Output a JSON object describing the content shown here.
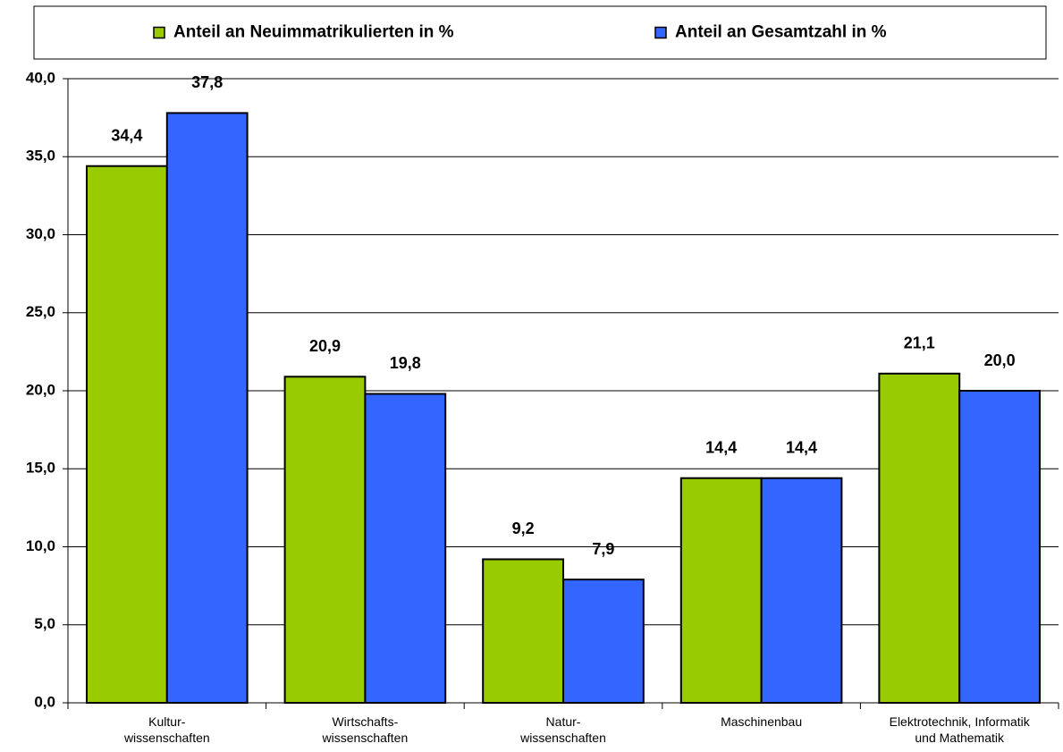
{
  "chart_data": {
    "type": "bar",
    "categories": [
      "Kultur-\nwissenschaften",
      "Wirtschafts-\nwissenschaften",
      "Natur-\nwissenschaften",
      "Maschinenbau",
      "Elektrotechnik, Informatik\nund Mathematik"
    ],
    "series": [
      {
        "name": "Anteil an Neuimmatrikulierten in %",
        "color": "#99cc00",
        "values": [
          34.4,
          20.9,
          9.2,
          14.4,
          21.1
        ],
        "value_labels": [
          "34,4",
          "20,9",
          "9,2",
          "14,4",
          "21,1"
        ]
      },
      {
        "name": "Anteil an Gesamtzahl in %",
        "color": "#3366ff",
        "values": [
          37.8,
          19.8,
          7.9,
          14.4,
          20.0
        ],
        "value_labels": [
          "37,8",
          "19,8",
          "7,9",
          "14,4",
          "20,0"
        ]
      }
    ],
    "ylim": [
      0,
      40
    ],
    "yticks": [
      {
        "value": 0,
        "label": "0,0"
      },
      {
        "value": 5,
        "label": "5,0"
      },
      {
        "value": 10,
        "label": "10,0"
      },
      {
        "value": 15,
        "label": "15,0"
      },
      {
        "value": 20,
        "label": "20,0"
      },
      {
        "value": 25,
        "label": "25,0"
      },
      {
        "value": 30,
        "label": "30,0"
      },
      {
        "value": 35,
        "label": "35,0"
      },
      {
        "value": 40,
        "label": "40,0"
      }
    ],
    "grid": true,
    "legend": "top"
  }
}
